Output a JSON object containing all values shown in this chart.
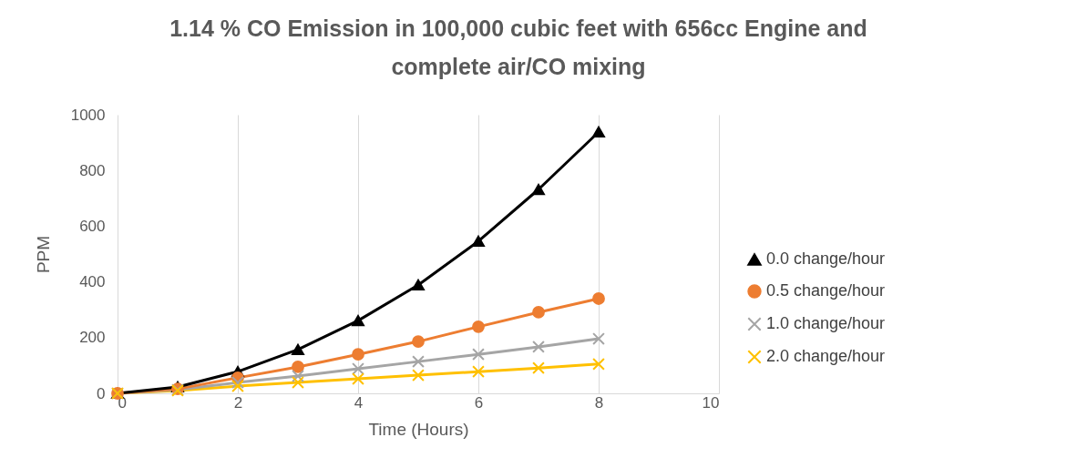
{
  "chart_data": {
    "type": "line",
    "title": "1.14 % CO Emission in 100,000 cubic feet with 656cc Engine and complete air/CO mixing",
    "xlabel": "Time (Hours)",
    "ylabel": "PPM",
    "x": [
      0,
      1,
      2,
      3,
      4,
      5,
      6,
      7,
      8
    ],
    "series": [
      {
        "name": "0.0 change/hour",
        "color": "#000000",
        "marker": "triangle",
        "values": [
          0,
          23,
          78,
          157,
          261,
          389,
          546,
          732,
          938
        ]
      },
      {
        "name": "0.5 change/hour",
        "color": "#ed7d31",
        "marker": "circle",
        "values": [
          0,
          16,
          56,
          95,
          140,
          186,
          239,
          291,
          340
        ]
      },
      {
        "name": "1.0 change/hour",
        "color": "#a5a5a5",
        "marker": "cross",
        "values": [
          0,
          13,
          39,
          62,
          88,
          114,
          140,
          167,
          196
        ]
      },
      {
        "name": "2.0 change/hour",
        "color": "#ffc000",
        "marker": "cross",
        "values": [
          0,
          10,
          26,
          39,
          52,
          65,
          78,
          91,
          105
        ]
      }
    ],
    "xlim": [
      0,
      10
    ],
    "xticks": [
      0,
      2,
      4,
      6,
      8,
      10
    ],
    "ylim": [
      0,
      1000
    ],
    "yticks": [
      0,
      200,
      400,
      600,
      800,
      1000
    ],
    "grid": "x",
    "legend": "right"
  }
}
